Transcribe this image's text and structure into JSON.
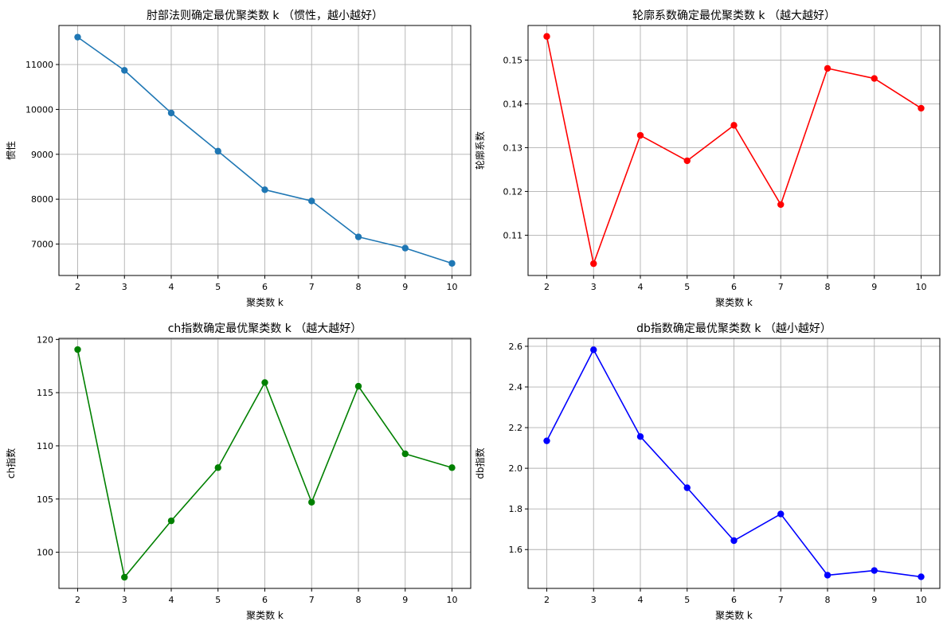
{
  "chart_data": [
    {
      "type": "line",
      "title": "肘部法则确定最优聚类数 k （惯性，越小越好）",
      "xlabel": "聚类数 k",
      "ylabel": "惯性",
      "x": [
        2,
        3,
        4,
        5,
        6,
        7,
        8,
        9,
        10
      ],
      "xticks": [
        "2",
        "3",
        "4",
        "5",
        "6",
        "7",
        "8",
        "9",
        "10"
      ],
      "xlim": [
        1.6,
        10.4
      ],
      "yticks": [
        7000,
        8000,
        9000,
        10000,
        11000
      ],
      "ylim": [
        6300,
        11870
      ],
      "grid": true,
      "series": [
        {
          "values": [
            11610,
            10870,
            9920,
            9070,
            8210,
            7960,
            7160,
            6910,
            6570
          ],
          "color": "#1f77b4",
          "marker": "circle"
        }
      ]
    },
    {
      "type": "line",
      "title": "轮廓系数确定最优聚类数 k （越大越好）",
      "xlabel": "聚类数 k",
      "ylabel": "轮廓系数",
      "x": [
        2,
        3,
        4,
        5,
        6,
        7,
        8,
        9,
        10
      ],
      "xticks": [
        "2",
        "3",
        "4",
        "5",
        "6",
        "7",
        "8",
        "9",
        "10"
      ],
      "xlim": [
        1.6,
        10.4
      ],
      "yticks": [
        0.11,
        0.12,
        0.13,
        0.14,
        0.15
      ],
      "ylim": [
        0.1008,
        0.1579
      ],
      "grid": true,
      "series": [
        {
          "values": [
            0.1554,
            0.1035,
            0.1328,
            0.127,
            0.1351,
            0.117,
            0.1481,
            0.1458,
            0.139
          ],
          "color": "#ff0000",
          "marker": "circle"
        }
      ]
    },
    {
      "type": "line",
      "title": "ch指数确定最优聚类数 k （越大越好）",
      "xlabel": "聚类数 k",
      "ylabel": "ch指数",
      "x": [
        2,
        3,
        4,
        5,
        6,
        7,
        8,
        9,
        10
      ],
      "xticks": [
        "2",
        "3",
        "4",
        "5",
        "6",
        "7",
        "8",
        "9",
        "10"
      ],
      "xlim": [
        1.6,
        10.4
      ],
      "yticks": [
        100,
        105,
        110,
        115,
        120
      ],
      "ylim": [
        96.6,
        120.1
      ],
      "grid": true,
      "series": [
        {
          "values": [
            119.05,
            97.65,
            102.95,
            107.95,
            115.95,
            104.7,
            115.6,
            109.25,
            107.95
          ],
          "color": "#008000",
          "marker": "circle"
        }
      ]
    },
    {
      "type": "line",
      "title": "db指数确定最优聚类数 k （越小越好）",
      "xlabel": "聚类数 k",
      "ylabel": "db指数",
      "x": [
        2,
        3,
        4,
        5,
        6,
        7,
        8,
        9,
        10
      ],
      "xticks": [
        "2",
        "3",
        "4",
        "5",
        "6",
        "7",
        "8",
        "9",
        "10"
      ],
      "xlim": [
        1.6,
        10.4
      ],
      "yticks": [
        1.6,
        1.8,
        2.0,
        2.2,
        2.4,
        2.6
      ],
      "ylim": [
        1.409,
        2.639
      ],
      "grid": true,
      "series": [
        {
          "values": [
            2.135,
            2.583,
            2.156,
            1.904,
            1.644,
            1.775,
            1.474,
            1.497,
            1.466
          ],
          "color": "#0000ff",
          "marker": "circle"
        }
      ]
    }
  ]
}
